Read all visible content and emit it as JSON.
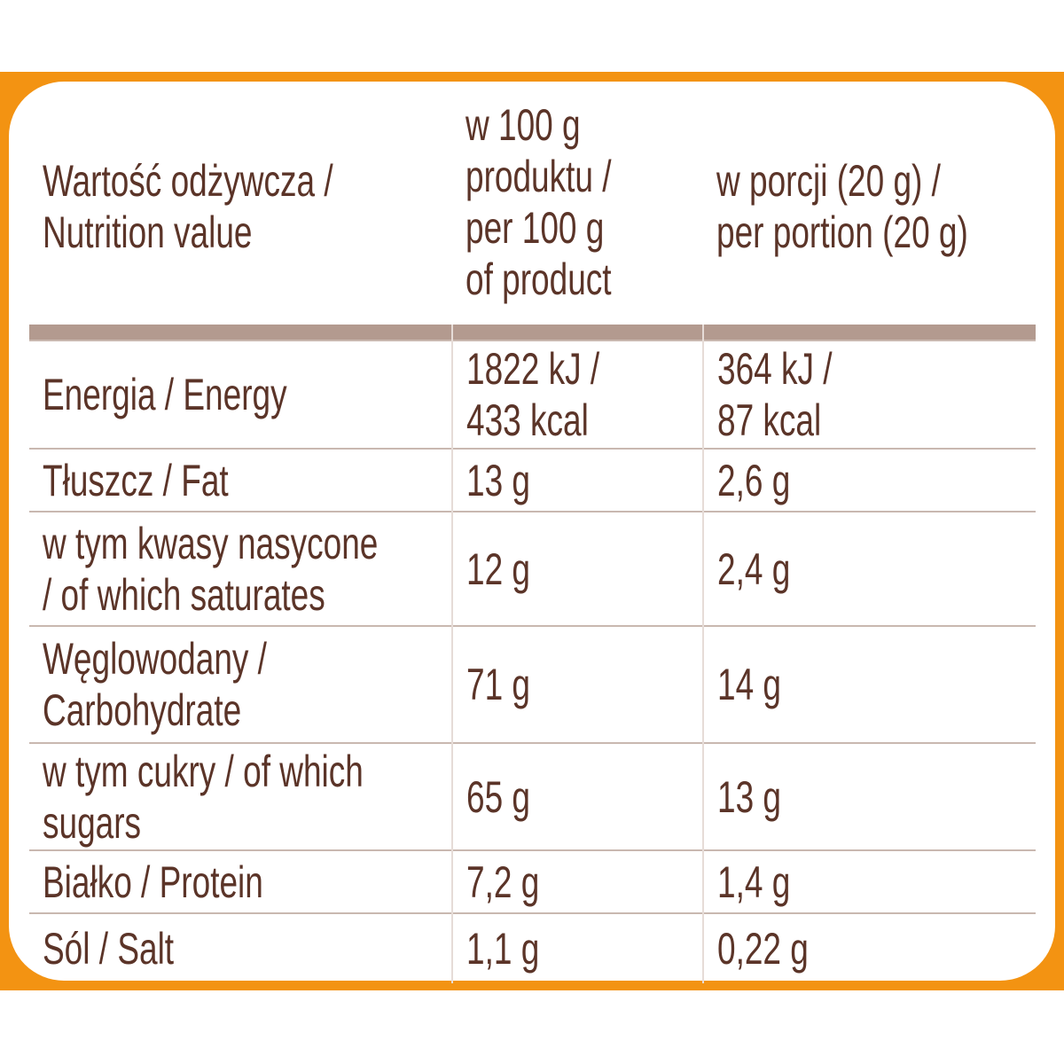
{
  "colors": {
    "border": "#f39312",
    "text": "#5b3428",
    "header_rule": "#b39a8f",
    "row_rule": "#c9b8b0"
  },
  "header": {
    "col1": [
      "Wartość odżywcza /",
      "Nutrition value"
    ],
    "col2": [
      "w 100 g",
      "produktu /",
      "per 100 g",
      "of product"
    ],
    "col3": [
      "w porcji (20 g) /",
      "per portion (20 g)"
    ]
  },
  "rows": [
    {
      "name": [
        "Energia / Energy"
      ],
      "per100": [
        "1822 kJ /",
        "433 kcal"
      ],
      "portion": [
        "364 kJ /",
        "87 kcal"
      ]
    },
    {
      "name": [
        "Tłuszcz / Fat"
      ],
      "per100": [
        "13 g"
      ],
      "portion": [
        "2,6 g"
      ]
    },
    {
      "name": [
        "w tym kwasy nasycone",
        "/ of which saturates"
      ],
      "per100": [
        "12 g"
      ],
      "portion": [
        "2,4 g"
      ]
    },
    {
      "name": [
        "Węglowodany /",
        "Carbohydrate"
      ],
      "per100": [
        "71 g"
      ],
      "portion": [
        "14 g"
      ]
    },
    {
      "name": [
        "w tym cukry / of which",
        "sugars"
      ],
      "per100": [
        "65 g"
      ],
      "portion": [
        "13 g"
      ]
    },
    {
      "name": [
        "Białko / Protein"
      ],
      "per100": [
        "7,2 g"
      ],
      "portion": [
        "1,4 g"
      ]
    },
    {
      "name": [
        "Sól / Salt"
      ],
      "per100": [
        "1,1 g"
      ],
      "portion": [
        "0,22 g"
      ]
    }
  ]
}
